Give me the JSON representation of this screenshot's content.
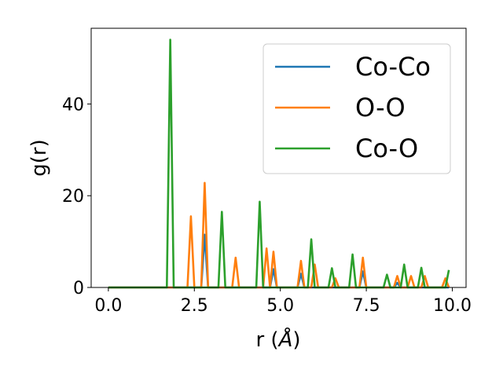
{
  "chart_data": {
    "type": "line",
    "title": "",
    "xlabel_base": "r (",
    "xlabel_unit": "Å",
    "xlabel_close": ")",
    "ylabel": "g(r)",
    "xlim": [
      -0.5,
      10.4
    ],
    "ylim": [
      0,
      56.5
    ],
    "xticks": [
      0.0,
      2.5,
      5.0,
      7.5,
      10.0
    ],
    "xtick_labels": [
      "0.0",
      "2.5",
      "5.0",
      "7.5",
      "10.0"
    ],
    "yticks": [
      0,
      20,
      40
    ],
    "ytick_labels": [
      "0",
      "20",
      "40"
    ],
    "grid": false,
    "legend_position": "top-right",
    "x": [
      0.0,
      0.1,
      0.2,
      0.3,
      0.4,
      0.5,
      0.6,
      0.7,
      0.8,
      0.9,
      1.0,
      1.1,
      1.2,
      1.3,
      1.4,
      1.5,
      1.6,
      1.7,
      1.8,
      1.9,
      2.0,
      2.1,
      2.2,
      2.3,
      2.4,
      2.5,
      2.6,
      2.7,
      2.8,
      2.9,
      3.0,
      3.1,
      3.2,
      3.3,
      3.4,
      3.5,
      3.6,
      3.7,
      3.8,
      3.9,
      4.0,
      4.1,
      4.2,
      4.3,
      4.4,
      4.5,
      4.6,
      4.7,
      4.8,
      4.9,
      5.0,
      5.1,
      5.2,
      5.3,
      5.4,
      5.5,
      5.6,
      5.7,
      5.8,
      5.9,
      6.0,
      6.1,
      6.2,
      6.3,
      6.4,
      6.5,
      6.6,
      6.7,
      6.8,
      6.9,
      7.0,
      7.1,
      7.2,
      7.3,
      7.4,
      7.5,
      7.6,
      7.7,
      7.8,
      7.9,
      8.0,
      8.1,
      8.2,
      8.3,
      8.4,
      8.5,
      8.6,
      8.7,
      8.8,
      8.9,
      9.0,
      9.1,
      9.2,
      9.3,
      9.4,
      9.5,
      9.6,
      9.7,
      9.8,
      9.9
    ],
    "series": [
      {
        "name": "Co-Co",
        "color": "#1f77b4",
        "values": [
          0,
          0,
          0,
          0,
          0,
          0,
          0,
          0,
          0,
          0,
          0,
          0,
          0,
          0,
          0,
          0,
          0,
          0,
          0,
          0,
          0,
          0,
          0,
          0,
          0,
          0,
          0,
          0,
          11.5,
          0,
          0,
          0,
          0,
          0,
          0,
          0,
          0,
          0,
          0,
          0,
          0,
          0,
          0,
          0,
          0,
          0,
          0,
          0,
          4.0,
          0,
          0,
          0,
          0,
          0,
          0,
          0,
          3.0,
          0,
          0,
          0,
          0,
          0,
          0,
          0,
          0,
          0,
          0,
          0,
          0,
          0,
          0,
          0,
          0,
          0,
          3.5,
          0,
          0,
          0,
          0,
          0,
          0,
          0,
          0,
          0,
          1.0,
          0,
          0,
          0,
          0,
          0,
          0,
          0,
          0,
          0,
          0,
          0,
          0,
          0,
          0,
          0
        ]
      },
      {
        "name": "O-O",
        "color": "#ff7f0e",
        "values": [
          0,
          0,
          0,
          0,
          0,
          0,
          0,
          0,
          0,
          0,
          0,
          0,
          0,
          0,
          0,
          0,
          0,
          0,
          0,
          0,
          0,
          0,
          0,
          0,
          15.5,
          0,
          0,
          0,
          22.8,
          0,
          0,
          0,
          0,
          0,
          0,
          0,
          0,
          6.5,
          0,
          0,
          0,
          0,
          0,
          0,
          0,
          0,
          8.5,
          0,
          7.8,
          0,
          0,
          0,
          0,
          0,
          0,
          0,
          5.8,
          0,
          0,
          0,
          5.0,
          0,
          0,
          0,
          0,
          0,
          2.0,
          0,
          0,
          0,
          0,
          0,
          0,
          0,
          6.5,
          0,
          0,
          0,
          0,
          0,
          0,
          0,
          0,
          0,
          2.5,
          0,
          0,
          0,
          2.5,
          0,
          0,
          0,
          2.5,
          0,
          0,
          0,
          0,
          0,
          2.0,
          0
        ]
      },
      {
        "name": "Co-O",
        "color": "#2ca02c",
        "values": [
          0,
          0,
          0,
          0,
          0,
          0,
          0,
          0,
          0,
          0,
          0,
          0,
          0,
          0,
          0,
          0,
          0,
          0,
          54.0,
          0,
          0,
          0,
          0,
          0,
          0,
          0,
          0,
          0,
          0,
          0,
          0,
          0,
          0,
          16.5,
          0,
          0,
          0,
          0,
          0,
          0,
          0,
          0,
          0,
          0,
          18.7,
          0,
          0,
          0,
          0,
          0,
          0,
          0,
          0,
          0,
          0,
          0,
          0,
          0,
          0,
          10.5,
          0,
          0,
          0,
          0,
          0,
          4.2,
          0,
          0,
          0,
          0,
          0,
          7.2,
          0,
          0,
          0,
          0,
          0,
          0,
          0,
          0,
          0,
          2.8,
          0,
          0,
          0,
          0,
          5.0,
          0,
          0,
          0,
          0,
          4.3,
          0,
          0,
          0,
          0,
          0,
          0,
          0,
          3.8
        ]
      }
    ]
  }
}
